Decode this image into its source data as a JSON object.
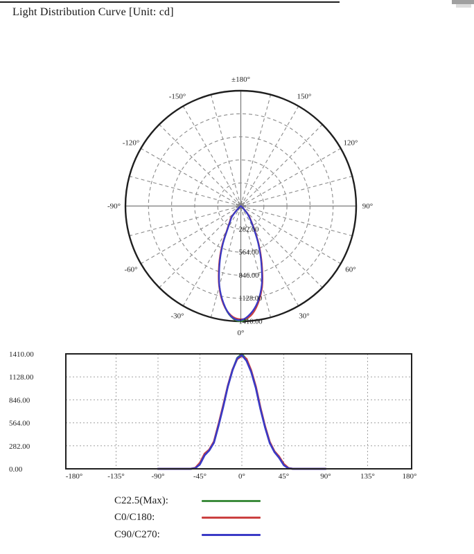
{
  "title": "Light Distribution Curve [Unit: cd]",
  "colors": {
    "c225": "#3d8c3d",
    "c0": "#cb4040",
    "c90": "#3a3ac6",
    "grid_polar": "#8a8a8a",
    "grid_cartesian": "#a0a0a0",
    "outline": "#1f1f1f"
  },
  "legend": {
    "items": [
      {
        "label": "C22.5(Max):",
        "color_key": "c225"
      },
      {
        "label": "C0/C180:",
        "color_key": "c0"
      },
      {
        "label": "C90/C270:",
        "color_key": "c90"
      }
    ]
  },
  "chart_data": [
    {
      "type": "polar",
      "name": "polar-light-distribution",
      "unit": "cd",
      "r_max": 1410,
      "ring_values": [
        282,
        564,
        846,
        1128,
        1410
      ],
      "ring_labels": [
        "282.00",
        "564.00",
        "846.00",
        "1128.00",
        "1410.00"
      ],
      "spoke_step_deg": 15,
      "angle_labels": [
        {
          "deg": 180,
          "text": "±180°"
        },
        {
          "deg": -150,
          "text": "-150°"
        },
        {
          "deg": 150,
          "text": "150°"
        },
        {
          "deg": -120,
          "text": "-120°"
        },
        {
          "deg": 120,
          "text": "120°"
        },
        {
          "deg": -90,
          "text": "-90°"
        },
        {
          "deg": 90,
          "text": "90°"
        },
        {
          "deg": -60,
          "text": "-60°"
        },
        {
          "deg": 60,
          "text": "60°"
        },
        {
          "deg": -30,
          "text": "-30°"
        },
        {
          "deg": 30,
          "text": "30°"
        },
        {
          "deg": 0,
          "text": "0°"
        }
      ],
      "angles_deg": [
        -90,
        -85,
        -80,
        -75,
        -70,
        -65,
        -60,
        -55,
        -50,
        -45,
        -40,
        -35,
        -30,
        -25,
        -20,
        -15,
        -10,
        -5,
        0,
        5,
        10,
        15,
        20,
        25,
        30,
        35,
        40,
        45,
        50,
        55,
        60,
        65,
        70,
        75,
        80,
        85,
        90
      ],
      "series": [
        {
          "name": "C22.5(Max)",
          "color_key": "c225",
          "values": [
            0,
            0,
            0,
            0,
            0,
            0,
            0,
            0,
            10,
            65,
            175,
            230,
            330,
            540,
            770,
            1015,
            1215,
            1360,
            1410,
            1345,
            1200,
            1000,
            740,
            512,
            322,
            210,
            142,
            52,
            8,
            0,
            0,
            0,
            0,
            0,
            0,
            0,
            0
          ]
        },
        {
          "name": "C0/C180",
          "color_key": "c0",
          "values": [
            0,
            0,
            0,
            0,
            0,
            0,
            0,
            0,
            12,
            75,
            185,
            235,
            335,
            550,
            780,
            1020,
            1220,
            1345,
            1385,
            1350,
            1210,
            1010,
            750,
            520,
            330,
            215,
            150,
            60,
            10,
            0,
            0,
            0,
            0,
            0,
            0,
            0,
            0
          ]
        },
        {
          "name": "C90/C270",
          "color_key": "c90",
          "values": [
            0,
            0,
            0,
            0,
            0,
            0,
            0,
            0,
            8,
            55,
            165,
            225,
            320,
            530,
            760,
            1010,
            1210,
            1355,
            1395,
            1325,
            1190,
            990,
            730,
            505,
            315,
            205,
            135,
            45,
            6,
            0,
            0,
            0,
            0,
            0,
            0,
            0,
            0
          ]
        }
      ]
    },
    {
      "type": "line",
      "name": "intensity-vs-angle",
      "unit": "cd",
      "xlim": [
        -180,
        180
      ],
      "ylim": [
        0,
        1410
      ],
      "x": [
        -90,
        -85,
        -80,
        -75,
        -70,
        -65,
        -60,
        -55,
        -50,
        -45,
        -40,
        -35,
        -30,
        -25,
        -20,
        -15,
        -10,
        -5,
        0,
        5,
        10,
        15,
        20,
        25,
        30,
        35,
        40,
        45,
        50,
        55,
        60,
        65,
        70,
        75,
        80,
        85,
        90
      ],
      "series": [
        {
          "name": "C22.5(Max)",
          "color_key": "c225",
          "values": [
            0,
            0,
            0,
            0,
            0,
            0,
            0,
            0,
            10,
            65,
            175,
            230,
            330,
            540,
            770,
            1015,
            1215,
            1360,
            1410,
            1345,
            1200,
            1000,
            740,
            512,
            322,
            210,
            142,
            52,
            8,
            0,
            0,
            0,
            0,
            0,
            0,
            0,
            0
          ]
        },
        {
          "name": "C0/C180",
          "color_key": "c0",
          "values": [
            0,
            0,
            0,
            0,
            0,
            0,
            0,
            0,
            12,
            75,
            185,
            235,
            335,
            550,
            780,
            1020,
            1220,
            1345,
            1385,
            1350,
            1210,
            1010,
            750,
            520,
            330,
            215,
            150,
            60,
            10,
            0,
            0,
            0,
            0,
            0,
            0,
            0,
            0
          ]
        },
        {
          "name": "C90/C270",
          "color_key": "c90",
          "values": [
            0,
            0,
            0,
            0,
            0,
            0,
            0,
            0,
            8,
            55,
            165,
            225,
            320,
            530,
            760,
            1010,
            1210,
            1355,
            1395,
            1325,
            1190,
            990,
            730,
            505,
            315,
            205,
            135,
            45,
            6,
            0,
            0,
            0,
            0,
            0,
            0,
            0,
            0
          ]
        }
      ],
      "xticks": [
        {
          "deg": -180,
          "label": "-180°"
        },
        {
          "deg": -135,
          "label": "-135°"
        },
        {
          "deg": -90,
          "label": "-90°"
        },
        {
          "deg": -45,
          "label": "-45°"
        },
        {
          "deg": 0,
          "label": "0°"
        },
        {
          "deg": 45,
          "label": "45°"
        },
        {
          "deg": 90,
          "label": "90°"
        },
        {
          "deg": 135,
          "label": "135°"
        },
        {
          "deg": 180,
          "label": "180°"
        }
      ],
      "yticks": [
        {
          "v": 1410,
          "label": "1410.00"
        },
        {
          "v": 1128,
          "label": "1128.00"
        },
        {
          "v": 846,
          "label": "846.00"
        },
        {
          "v": 564,
          "label": "564.00"
        },
        {
          "v": 282,
          "label": "282.00"
        },
        {
          "v": 0,
          "label": "0.00"
        }
      ],
      "grid": {
        "x_deg": [
          -135,
          -90,
          -45,
          0,
          45,
          90,
          135
        ],
        "y_v": [
          282,
          564,
          846,
          1128
        ]
      }
    }
  ]
}
